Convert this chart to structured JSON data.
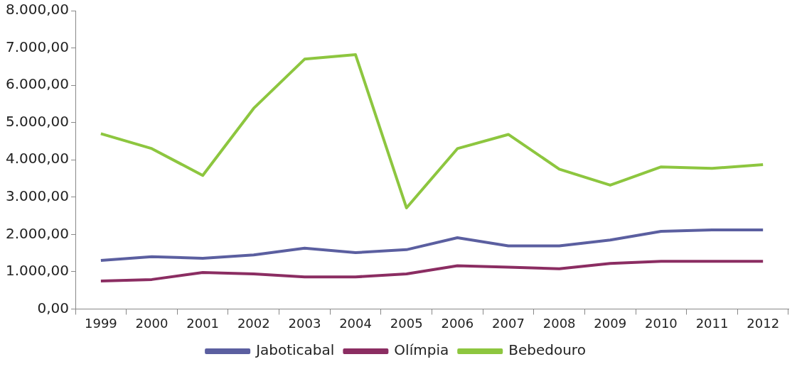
{
  "chart_data": {
    "type": "line",
    "categories": [
      "1999",
      "2000",
      "2001",
      "2002",
      "2003",
      "2004",
      "2005",
      "2006",
      "2007",
      "2008",
      "2009",
      "2010",
      "2011",
      "2012"
    ],
    "series": [
      {
        "name": "Jaboticabal",
        "color": "#5b5fa0",
        "values": [
          1300,
          1400,
          1360,
          1450,
          1630,
          1510,
          1590,
          1910,
          1690,
          1690,
          1850,
          2080,
          2120,
          2120
        ]
      },
      {
        "name": "Olímpia",
        "color": "#8b2d62",
        "values": [
          750,
          790,
          980,
          940,
          860,
          860,
          940,
          1160,
          1120,
          1080,
          1220,
          1280,
          1280,
          1280
        ]
      },
      {
        "name": "Bebedouro",
        "color": "#8dc63f",
        "values": [
          4700,
          4300,
          3580,
          5380,
          6700,
          6820,
          2710,
          4300,
          4680,
          3750,
          3320,
          3810,
          3770,
          3870
        ]
      }
    ],
    "ylim": [
      0,
      8000
    ],
    "yticks": [
      {
        "value": 0,
        "label": "0,00"
      },
      {
        "value": 1000,
        "label": "1.000,00"
      },
      {
        "value": 2000,
        "label": "2.000,00"
      },
      {
        "value": 3000,
        "label": "3.000,00"
      },
      {
        "value": 4000,
        "label": "4.000,00"
      },
      {
        "value": 5000,
        "label": "5.000,00"
      },
      {
        "value": 6000,
        "label": "6.000,00"
      },
      {
        "value": 7000,
        "label": "7.000,00"
      },
      {
        "value": 8000,
        "label": "8.000,00"
      }
    ],
    "grid": false,
    "legend": "bottom",
    "marker": "none",
    "line_style": "solid"
  }
}
